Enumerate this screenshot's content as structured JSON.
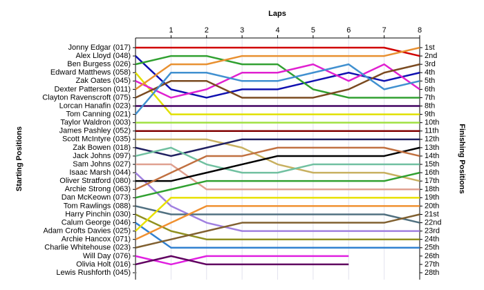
{
  "chart_data": {
    "type": "bump",
    "xlabel": "Laps",
    "ylabel": "Starting Positions",
    "y2label": "Finishing Positions",
    "x": [
      0,
      1,
      2,
      3,
      4,
      5,
      6,
      7,
      8
    ],
    "xlim": [
      0,
      8
    ],
    "xticks": [
      1,
      2,
      3,
      4,
      5,
      6,
      7,
      8
    ],
    "ylim": [
      1,
      28
    ],
    "grid": true,
    "finishing_positions": [
      "1st",
      "2nd",
      "3rd",
      "4th",
      "5th",
      "6th",
      "7th",
      "8th",
      "9th",
      "10th",
      "11th",
      "12th",
      "13th",
      "14th",
      "15th",
      "16th",
      "17th",
      "18th",
      "19th",
      "20th",
      "21st",
      "22nd",
      "23rd",
      "24th",
      "25th",
      "26th",
      "27th",
      "28th"
    ],
    "series": [
      {
        "name": "Jonny Edgar (017)",
        "color": "#d00000",
        "values": [
          1,
          1,
          1,
          1,
          1,
          1,
          1,
          1,
          2
        ]
      },
      {
        "name": "Alex Lloyd (048)",
        "color": "#1010b0",
        "values": [
          2,
          6,
          7,
          6,
          6,
          5,
          4,
          5,
          4
        ]
      },
      {
        "name": "Ben Burgess (026)",
        "color": "#30a030",
        "values": [
          3,
          2,
          2,
          3,
          3,
          6,
          7,
          7,
          7
        ]
      },
      {
        "name": "Edward Matthews (058)",
        "color": "#e0e000",
        "values": [
          4,
          9,
          9,
          9,
          9,
          9,
          9,
          9,
          9
        ]
      },
      {
        "name": "Zak Oates (045)",
        "color": "#e020d0",
        "values": [
          5,
          7,
          6,
          4,
          4,
          3,
          5,
          3,
          6
        ]
      },
      {
        "name": "Dexter Patterson (011)",
        "color": "#e89030",
        "values": [
          6,
          3,
          3,
          2,
          2,
          2,
          2,
          2,
          1
        ]
      },
      {
        "name": "Clayton Ravenscroft (075)",
        "color": "#7a4a20",
        "values": [
          7,
          5,
          5,
          7,
          7,
          7,
          6,
          4,
          3
        ]
      },
      {
        "name": "Lorcan Hanafin (023)",
        "color": "#400060",
        "values": [
          8,
          8,
          8,
          8,
          8,
          8,
          8,
          8,
          8
        ]
      },
      {
        "name": "Tom Canning (021)",
        "color": "#4090d0",
        "values": [
          9,
          4,
          4,
          5,
          5,
          4,
          3,
          6,
          5
        ]
      },
      {
        "name": "Taylor Waldron (003)",
        "color": "#a0e040",
        "values": [
          10,
          10,
          10,
          10,
          10,
          10,
          10,
          10,
          10
        ]
      },
      {
        "name": "James Pashley (052)",
        "color": "#800000",
        "values": [
          11,
          11,
          11,
          11,
          11,
          11,
          11,
          11,
          11
        ]
      },
      {
        "name": "Scott McIntyre (035)",
        "color": "#c8b060",
        "values": [
          12,
          12,
          12,
          13,
          15,
          16,
          16,
          16,
          17
        ]
      },
      {
        "name": "Zak Bowen (018)",
        "color": "#202060",
        "values": [
          13,
          14,
          13,
          12,
          12,
          12,
          12,
          12,
          12
        ]
      },
      {
        "name": "Jack Johns (097)",
        "color": "#70c0a0",
        "values": [
          14,
          13,
          15,
          16,
          16,
          15,
          15,
          15,
          15
        ]
      },
      {
        "name": "Sam Johns (027)",
        "color": "#e0a090",
        "values": [
          15,
          15,
          18,
          18,
          18,
          18,
          18,
          18,
          18
        ]
      },
      {
        "name": "Isaac Marsh (044)",
        "color": "#a080e0",
        "values": [
          16,
          20,
          22,
          23,
          23,
          23,
          23,
          23,
          23
        ]
      },
      {
        "name": "Oliver Stratford (080)",
        "color": "#000000",
        "values": [
          17,
          17,
          16,
          15,
          14,
          14,
          14,
          14,
          13
        ]
      },
      {
        "name": "Archie Strong (063)",
        "color": "#c07040",
        "values": [
          18,
          16,
          14,
          14,
          13,
          13,
          13,
          13,
          14
        ]
      },
      {
        "name": "Dan McKeown (073)",
        "color": "#30a030",
        "values": [
          19,
          18,
          17,
          17,
          17,
          17,
          17,
          17,
          16
        ]
      },
      {
        "name": "Tom Rawlings (088)",
        "color": "#507080",
        "values": [
          20,
          21,
          21,
          21,
          21,
          21,
          21,
          21,
          22
        ]
      },
      {
        "name": "Harry Pinchin (030)",
        "color": "#909020",
        "values": [
          21,
          23,
          24,
          24,
          24,
          24,
          24,
          24,
          24
        ]
      },
      {
        "name": "Calum George (046)",
        "color": "#3080d0",
        "values": [
          22,
          25,
          25,
          25,
          25,
          25,
          25,
          25,
          25
        ]
      },
      {
        "name": "Adam Crofts Davies (025)",
        "color": "#e8e000",
        "values": [
          23,
          19,
          19,
          19,
          19,
          19,
          19,
          19,
          19
        ]
      },
      {
        "name": "Archie Hancox (071)",
        "color": "#f09030",
        "values": [
          24,
          22,
          20,
          20,
          20,
          20,
          20,
          20,
          20
        ]
      },
      {
        "name": "Charlie Whitehouse (023)",
        "color": "#806030",
        "values": [
          25,
          24,
          23,
          22,
          22,
          22,
          22,
          22,
          21
        ]
      },
      {
        "name": "Will Day (076)",
        "color": "#e020e0",
        "values": [
          26,
          27,
          26,
          26,
          26,
          26,
          26,
          null,
          null
        ]
      },
      {
        "name": "Olivia Holt (016)",
        "color": "#600060",
        "values": [
          27,
          26,
          27,
          27,
          27,
          27,
          27,
          null,
          null
        ]
      },
      {
        "name": "Lewis Rushforth (045)",
        "color": "#808080",
        "values": [
          28,
          null,
          null,
          null,
          null,
          null,
          null,
          null,
          null
        ]
      }
    ]
  }
}
